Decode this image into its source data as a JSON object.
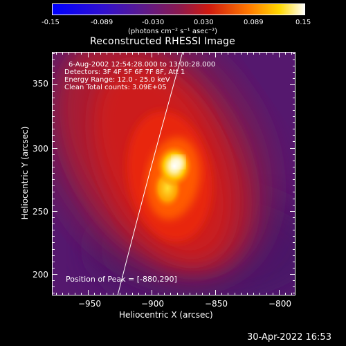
{
  "colorbar": {
    "tick_labels": [
      "-0.15",
      "-0.089",
      "-0.030",
      "0.030",
      "0.089",
      "0.15"
    ],
    "units_label": "(photons cm⁻² s⁻¹ asec⁻²)",
    "range": [
      -0.15,
      0.15
    ],
    "colormap": "blue-purple-red-yellow-white"
  },
  "plot": {
    "title": "Reconstructed RHESSI Image",
    "xlabel": "Heliocentric X (arcsec)",
    "ylabel": "Heliocentric Y (arcsec)",
    "x_ticks": [
      "−950",
      "−900",
      "−850",
      "−800"
    ],
    "y_ticks": [
      "350",
      "300",
      "250",
      "200"
    ],
    "x_range": [
      -978,
      -787
    ],
    "y_range": [
      183,
      376
    ],
    "info_lines": [
      "6-Aug-2002 12:54:28.000 to 13:00:28.000",
      "Detectors: 3F 4F 5F 6F 7F 8F, Att 1",
      "Energy Range: 12.0 - 25.0 keV",
      "Clean     Total counts: 3.09E+05"
    ],
    "peak_label": "Position of Peak = [-880,290]",
    "peak": [
      -880,
      290
    ]
  },
  "timestamp": "30-Apr-2022 16:53"
}
